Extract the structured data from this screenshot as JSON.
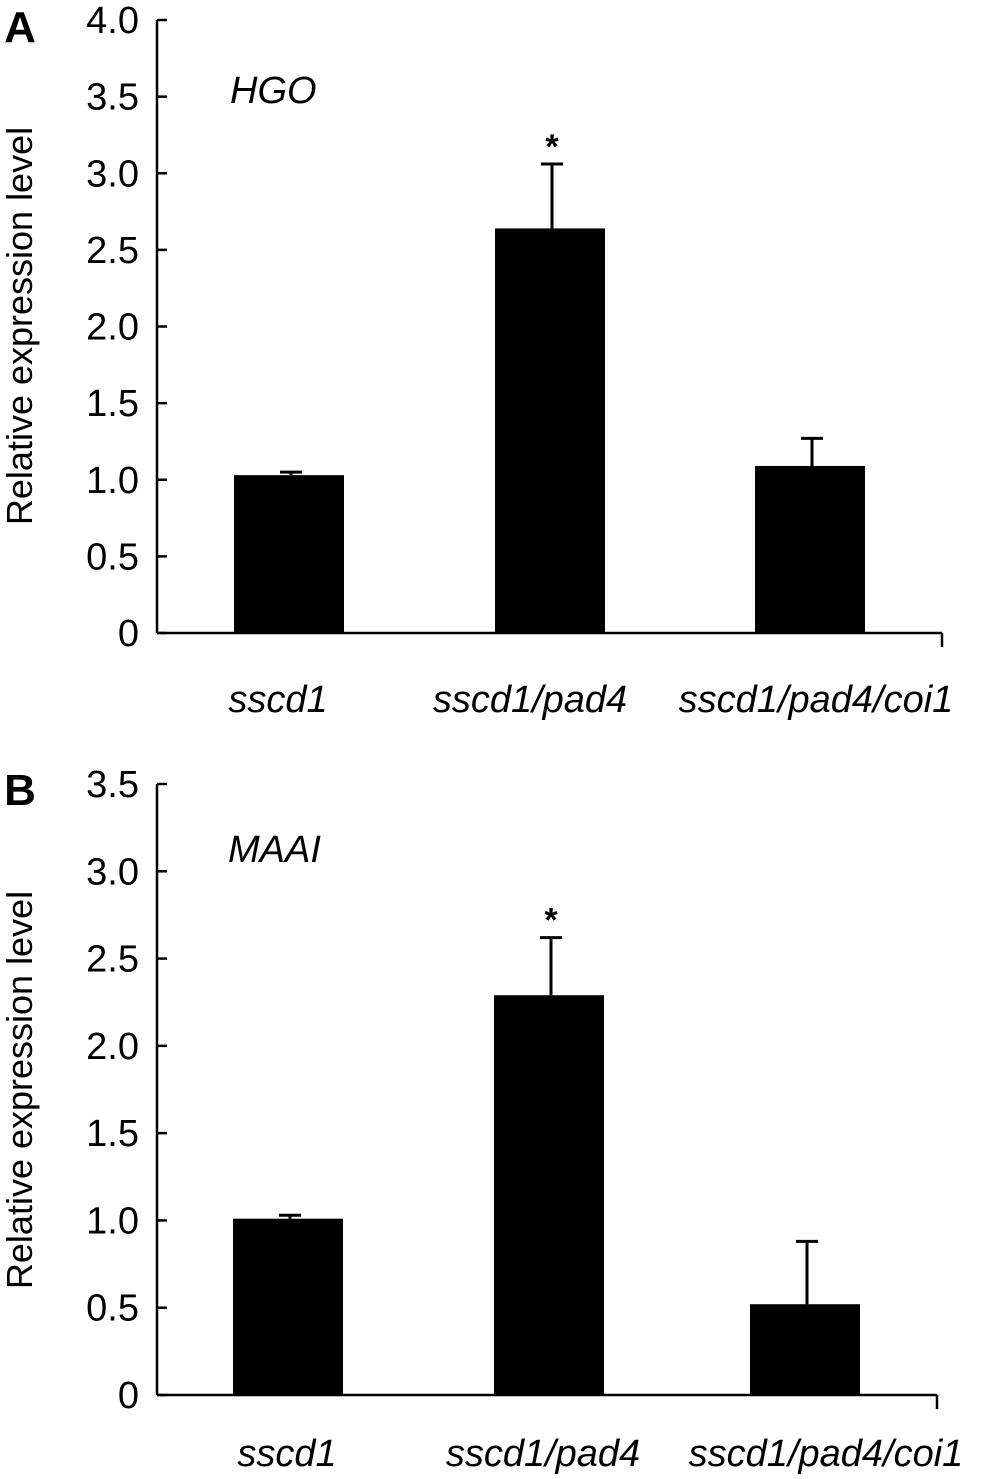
{
  "chart_data": [
    {
      "panel_label": "A",
      "type": "bar",
      "annotation": "HGO",
      "ylabel": "Relative expression level",
      "ylim": [
        0,
        4.0
      ],
      "y_ticks": [
        "0",
        "0.5",
        "1.0",
        "1.5",
        "2.0",
        "2.5",
        "3.0",
        "3.5",
        "4.0"
      ],
      "categories": [
        "sscd1",
        "sscd1/pad4",
        "sscd1/pad4/coi1"
      ],
      "values": [
        1.03,
        2.64,
        1.09
      ],
      "errors": [
        0.02,
        0.42,
        0.18
      ],
      "significance": [
        "",
        "*",
        ""
      ],
      "bar_color": "#000000"
    },
    {
      "panel_label": "B",
      "type": "bar",
      "annotation": "MAAI",
      "ylabel": "Relative expression level",
      "ylim": [
        0,
        3.5
      ],
      "y_ticks": [
        "0",
        "0.5",
        "1.0",
        "1.5",
        "2.0",
        "2.5",
        "3.0",
        "3.5"
      ],
      "categories": [
        "sscd1",
        "sscd1/pad4",
        "sscd1/pad4/coi1"
      ],
      "values": [
        1.01,
        2.29,
        0.52
      ],
      "errors": [
        0.02,
        0.33,
        0.36
      ],
      "significance": [
        "",
        "*",
        ""
      ],
      "bar_color": "#000000"
    }
  ]
}
